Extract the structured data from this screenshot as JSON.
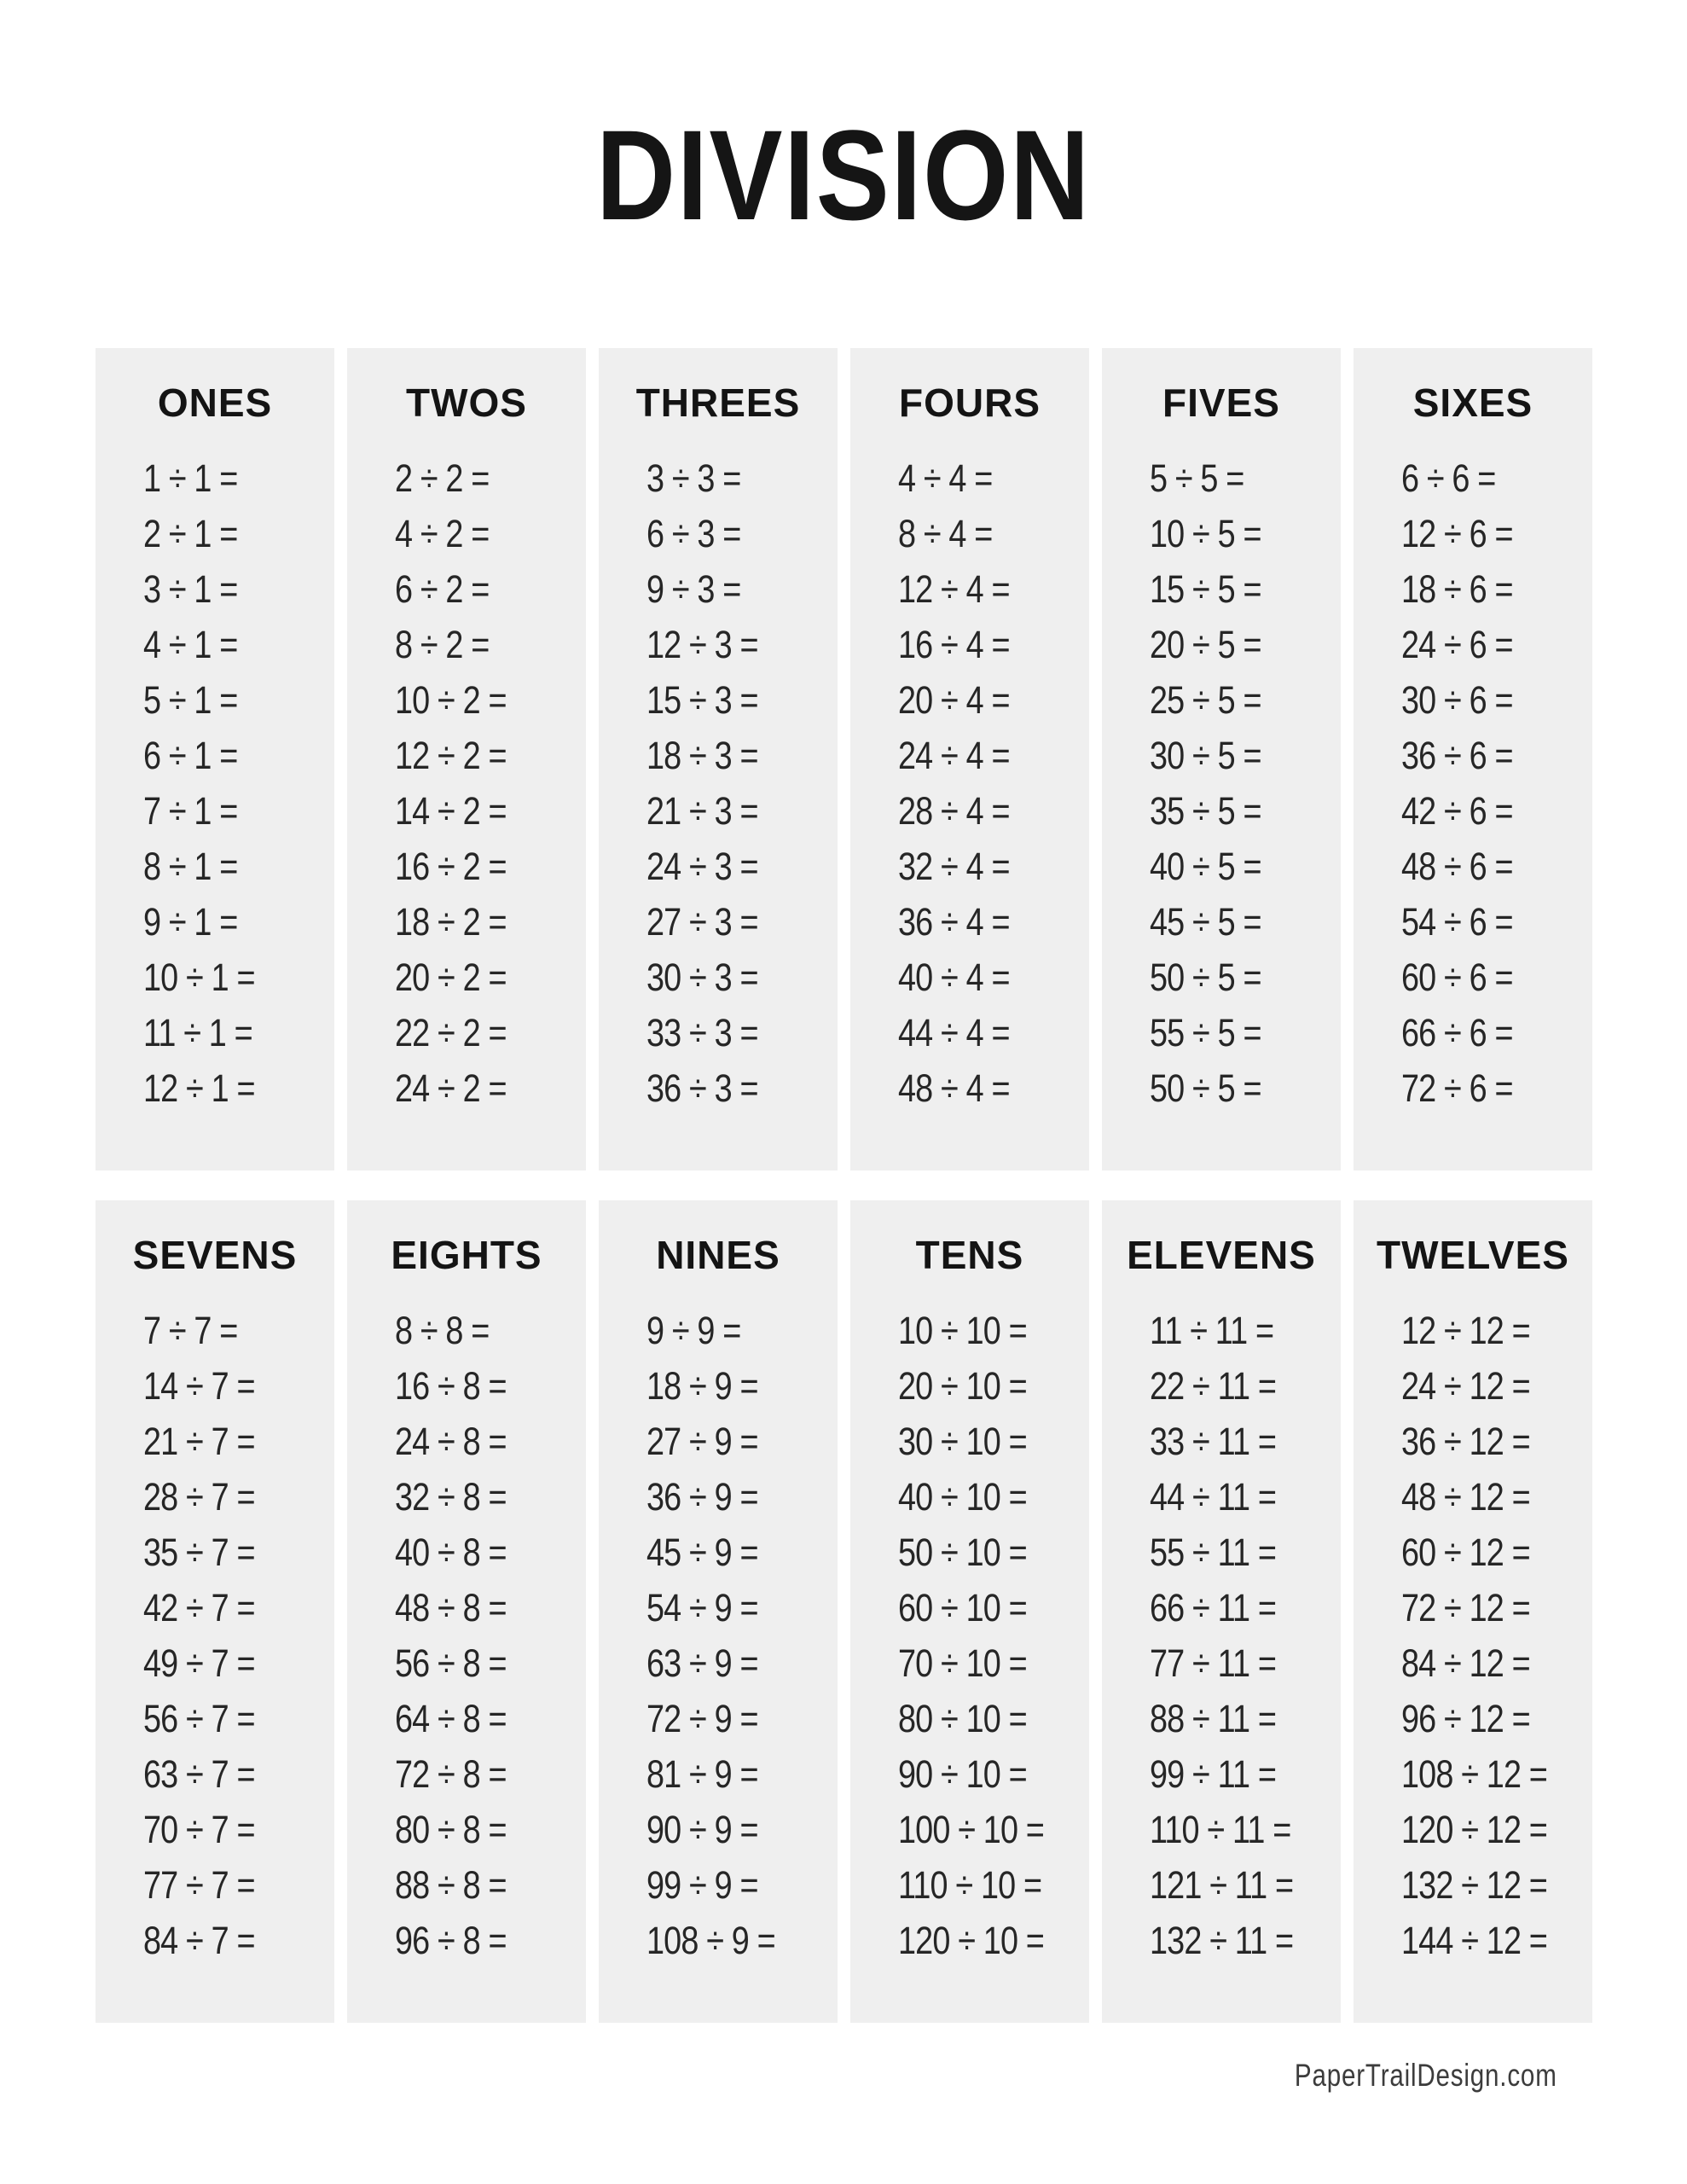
{
  "page": {
    "title": "DIVISION",
    "footer": "PaperTrailDesign.com"
  },
  "colors": {
    "page_bg": "#ffffff",
    "panel_bg": "#efefef",
    "title_color": "#151515",
    "text_color": "#262626"
  },
  "columns": [
    {
      "label": "ONES",
      "problems": [
        "1 ÷ 1 =",
        "2 ÷ 1 =",
        "3 ÷ 1 =",
        "4 ÷ 1 =",
        "5 ÷ 1 =",
        "6 ÷ 1 =",
        "7 ÷ 1 =",
        "8 ÷ 1 =",
        "9 ÷ 1 =",
        "10 ÷ 1 =",
        "11 ÷ 1 =",
        "12 ÷ 1 ="
      ]
    },
    {
      "label": "TWOS",
      "problems": [
        "2 ÷ 2 =",
        "4 ÷ 2 =",
        "6 ÷ 2 =",
        "8 ÷ 2 =",
        "10 ÷ 2 =",
        "12 ÷ 2 =",
        "14 ÷ 2 =",
        "16 ÷ 2 =",
        "18 ÷ 2 =",
        "20 ÷ 2 =",
        "22 ÷ 2 =",
        "24 ÷ 2 ="
      ]
    },
    {
      "label": "THREES",
      "problems": [
        "3 ÷ 3 =",
        "6 ÷ 3 =",
        "9 ÷ 3 =",
        "12 ÷ 3 =",
        "15 ÷ 3 =",
        "18 ÷ 3 =",
        "21 ÷ 3 =",
        "24 ÷ 3 =",
        "27 ÷ 3 =",
        "30 ÷ 3 =",
        "33 ÷ 3 =",
        "36 ÷ 3 ="
      ]
    },
    {
      "label": "FOURS",
      "problems": [
        "4 ÷ 4 =",
        "8 ÷ 4 =",
        "12 ÷ 4 =",
        "16 ÷ 4 =",
        "20 ÷ 4 =",
        "24 ÷ 4 =",
        "28 ÷ 4 =",
        "32 ÷ 4 =",
        "36 ÷ 4 =",
        "40 ÷ 4 =",
        "44 ÷ 4 =",
        "48 ÷ 4 ="
      ]
    },
    {
      "label": "FIVES",
      "problems": [
        "5 ÷ 5 =",
        "10 ÷ 5 =",
        "15 ÷ 5 =",
        "20 ÷ 5 =",
        "25 ÷ 5 =",
        "30 ÷ 5 =",
        "35 ÷ 5 =",
        "40 ÷ 5 =",
        "45 ÷ 5 =",
        "50 ÷ 5 =",
        "55 ÷ 5 =",
        "50 ÷ 5 ="
      ]
    },
    {
      "label": "SIXES",
      "problems": [
        "6 ÷ 6 =",
        "12 ÷ 6 =",
        "18 ÷ 6 =",
        "24 ÷ 6 =",
        "30 ÷ 6 =",
        "36 ÷ 6 =",
        "42 ÷ 6 =",
        "48 ÷ 6 =",
        "54 ÷ 6 =",
        "60 ÷ 6 =",
        "66 ÷ 6 =",
        "72 ÷ 6 ="
      ]
    },
    {
      "label": "SEVENS",
      "problems": [
        "7 ÷ 7 =",
        "14 ÷ 7 =",
        "21 ÷ 7 =",
        "28 ÷ 7 =",
        "35 ÷ 7 =",
        "42 ÷ 7 =",
        "49 ÷ 7 =",
        "56 ÷ 7 =",
        "63 ÷ 7 =",
        "70 ÷ 7 =",
        "77 ÷ 7 =",
        "84 ÷ 7 ="
      ]
    },
    {
      "label": "EIGHTS",
      "problems": [
        "8 ÷ 8 =",
        "16 ÷ 8 =",
        "24 ÷ 8 =",
        "32 ÷ 8 =",
        "40 ÷ 8 =",
        "48 ÷ 8 =",
        "56 ÷ 8 =",
        "64 ÷ 8 =",
        "72 ÷ 8 =",
        "80 ÷ 8 =",
        "88 ÷ 8 =",
        "96 ÷ 8 ="
      ]
    },
    {
      "label": "NINES",
      "problems": [
        "9 ÷ 9 =",
        "18 ÷ 9 =",
        "27 ÷ 9 =",
        "36 ÷ 9 =",
        "45 ÷ 9 =",
        "54 ÷ 9 =",
        "63 ÷ 9 =",
        "72 ÷ 9 =",
        "81 ÷ 9 =",
        "90 ÷ 9 =",
        "99 ÷ 9 =",
        "108 ÷ 9 ="
      ]
    },
    {
      "label": "TENS",
      "problems": [
        "10 ÷ 10 =",
        "20 ÷ 10 =",
        "30 ÷ 10 =",
        "40 ÷ 10 =",
        "50 ÷ 10 =",
        "60 ÷ 10 =",
        "70 ÷ 10 =",
        "80 ÷ 10 =",
        "90 ÷ 10 =",
        "100 ÷ 10 =",
        "110 ÷ 10 =",
        "120 ÷ 10 ="
      ]
    },
    {
      "label": "ELEVENS",
      "problems": [
        "11 ÷ 11 =",
        "22 ÷ 11 =",
        "33 ÷ 11 =",
        "44 ÷ 11 =",
        "55 ÷ 11 =",
        "66 ÷ 11 =",
        "77 ÷ 11 =",
        "88 ÷ 11 =",
        "99 ÷ 11 =",
        "110 ÷ 11 =",
        "121 ÷ 11 =",
        "132 ÷ 11 ="
      ]
    },
    {
      "label": "TWELVES",
      "problems": [
        "12 ÷ 12 =",
        "24 ÷ 12 =",
        "36 ÷ 12 =",
        "48 ÷ 12 =",
        "60 ÷ 12 =",
        "72 ÷ 12 =",
        "84 ÷ 12 =",
        "96 ÷ 12 =",
        "108 ÷ 12 =",
        "120 ÷ 12 =",
        "132 ÷ 12 =",
        "144 ÷ 12 ="
      ]
    }
  ]
}
